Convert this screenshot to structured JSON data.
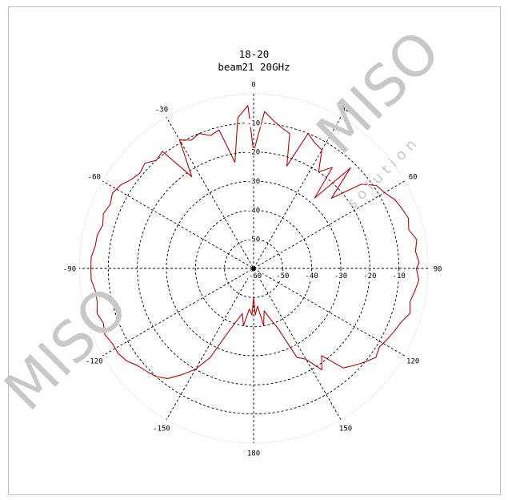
{
  "chart_data": {
    "type": "polar-line",
    "title": "18-20",
    "subtitle": "beam21 20GHz",
    "angle_tick_labels": [
      "0",
      "30",
      "60",
      "90",
      "120",
      "150",
      "180",
      "-150",
      "-120",
      "-90",
      "-60",
      "-30"
    ],
    "radial_tick_labels": [
      "-10",
      "-20",
      "-30",
      "-40",
      "-50",
      "-60",
      "-50",
      "-40",
      "-30",
      "-20",
      "-10"
    ],
    "radial_range": [
      -60,
      0
    ],
    "radial_step": 10,
    "angular_step_deg": 30,
    "grid": true,
    "series": [
      {
        "color": "#c00000",
        "angle_deg": [
          0,
          4,
          8,
          12,
          15,
          18,
          22,
          26,
          30,
          34,
          38,
          41,
          44,
          48,
          52,
          56,
          60,
          64,
          68,
          72,
          76,
          80,
          84,
          88,
          90,
          94,
          98,
          102,
          106,
          110,
          114,
          118,
          122,
          126,
          130,
          134,
          138,
          142,
          146,
          150,
          154,
          158,
          162,
          166,
          170,
          174,
          178,
          180,
          182,
          186,
          190,
          194,
          198,
          202,
          206,
          210,
          214,
          218,
          222,
          226,
          230,
          234,
          238,
          242,
          246,
          250,
          254,
          258,
          262,
          266,
          270,
          274,
          278,
          282,
          286,
          290,
          294,
          298,
          302,
          306,
          310,
          314,
          318,
          322,
          326,
          330,
          334,
          338,
          342,
          346,
          350,
          354,
          358,
          360
        ],
        "level_db": [
          -20,
          -6,
          -9,
          -11,
          -12,
          -23,
          -10,
          -12,
          -13,
          -20,
          -16,
          -28,
          -12,
          -24,
          -13,
          -9,
          -8,
          -6,
          -5,
          -4,
          -5,
          -3,
          -4,
          -3,
          -4,
          -3,
          -4,
          -5,
          -4,
          -6,
          -7,
          -8,
          -9,
          -8,
          -10,
          -12,
          -14,
          -22,
          -18,
          -24,
          -26,
          -38,
          -42,
          -45,
          -40,
          -47,
          -44,
          -50,
          -44,
          -46,
          -40,
          -44,
          -41,
          -36,
          -26,
          -20,
          -16,
          -12,
          -10,
          -9,
          -8,
          -6,
          -5,
          -5,
          -4,
          -5,
          -4,
          -5,
          -5,
          -4,
          -4,
          -4,
          -5,
          -5,
          -6,
          -5,
          -6,
          -5,
          -6,
          -8,
          -9,
          -8,
          -10,
          -9,
          -22,
          -9,
          -11,
          -10,
          -12,
          -11,
          -23,
          -8,
          -4,
          -20
        ]
      }
    ]
  },
  "watermark": {
    "text": "MISO",
    "small": "solution",
    "color": "#c8c8c8"
  }
}
